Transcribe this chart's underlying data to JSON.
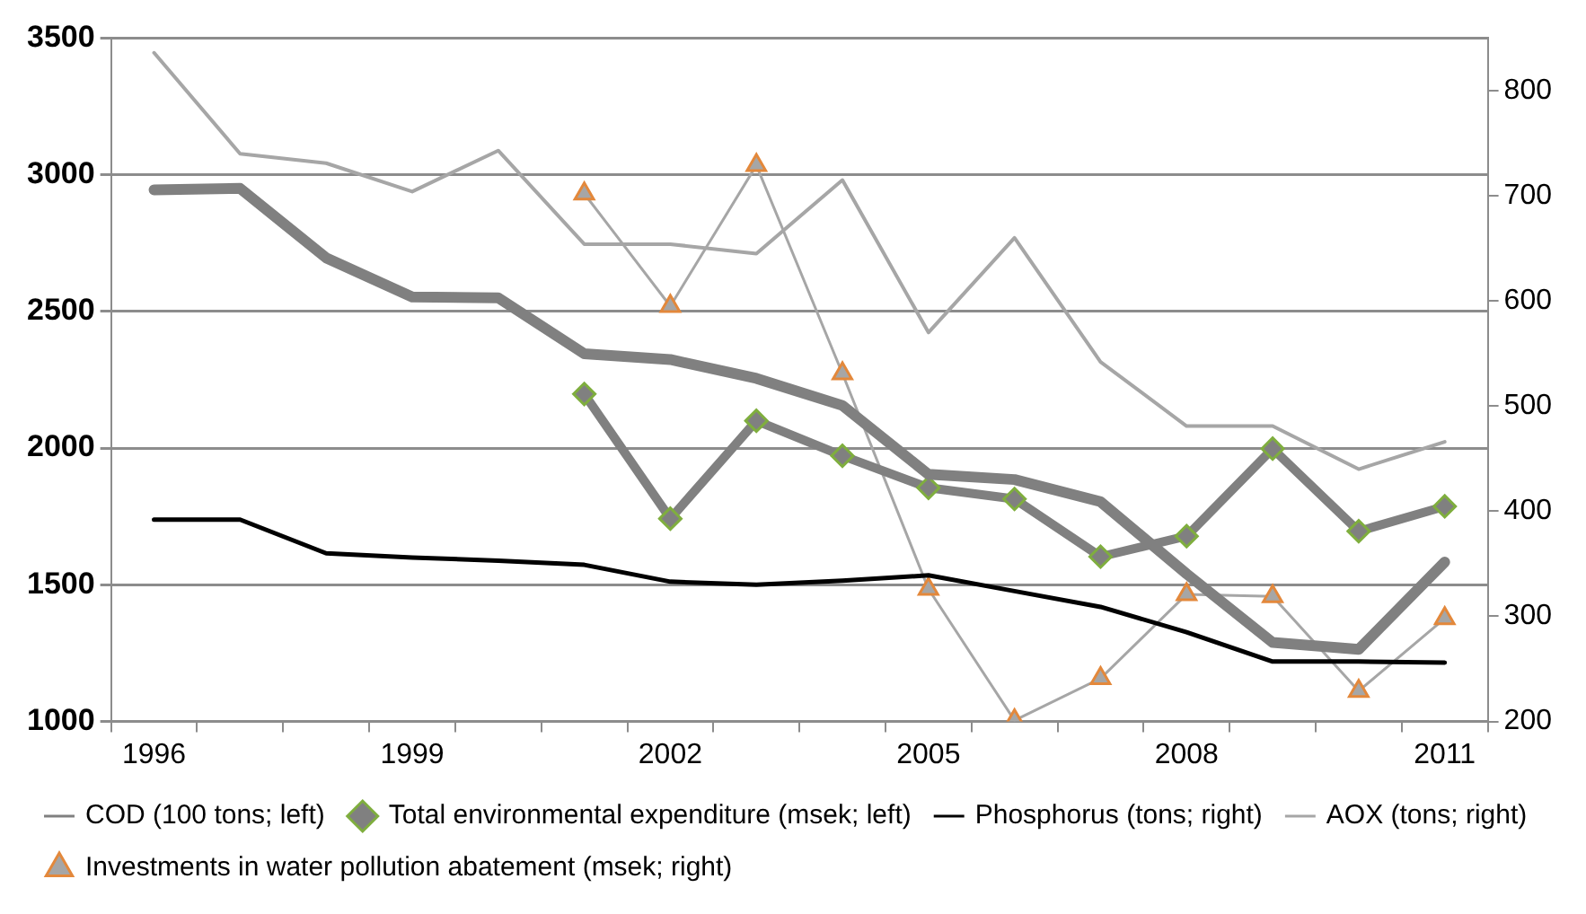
{
  "chart_data": {
    "type": "line",
    "categories": [
      "1996",
      null,
      null,
      "1999",
      null,
      null,
      "2002",
      null,
      null,
      "2005",
      null,
      null,
      "2008",
      null,
      null,
      "2011"
    ],
    "series": [
      {
        "name": "COD (100 tons; left)",
        "color": "#808080",
        "marker": "none",
        "values": [
          2945,
          2950,
          2696,
          2553,
          2550,
          2345,
          2324,
          2255,
          2156,
          1904,
          1885,
          1804,
          1540,
          1289,
          1264,
          1583
        ]
      },
      {
        "name": "Total environmental expenditure (msek; left)",
        "color": "#808080",
        "marker": "diamond",
        "values": [
          null,
          null,
          null,
          null,
          null,
          2198,
          1742,
          2100,
          1972,
          1855,
          1814,
          1603,
          1678,
          1998,
          1696,
          1787
        ]
      },
      {
        "name": "Phosphorus (tons; right)",
        "color": "#000000",
        "marker": "none",
        "axis": "y2",
        "values": [
          392,
          392,
          360,
          356,
          353,
          349,
          333,
          330,
          334,
          339,
          324,
          309,
          285,
          257,
          257,
          256
        ]
      },
      {
        "name": "AOX (tons; right)",
        "color": "#a6a6a6",
        "marker": "none",
        "axis": "y2",
        "values": [
          836,
          740,
          731,
          704,
          743,
          654,
          654,
          645,
          715,
          570,
          660,
          542,
          481,
          481,
          440,
          466
        ]
      },
      {
        "name": "Investments in water pollution abatement (msek; right)",
        "color": "#a6a6a6",
        "marker": "triangle",
        "axis": "y2",
        "values": [
          null,
          null,
          null,
          null,
          null,
          702,
          595,
          729,
          531,
          326,
          201,
          241,
          321,
          319,
          229,
          298
        ]
      }
    ],
    "ylim": [
      1000,
      3500
    ],
    "yticks": [
      1000,
      1500,
      2000,
      2500,
      3000,
      3500
    ],
    "y2lim": [
      200,
      850
    ],
    "y2ticks": [
      200,
      300,
      400,
      500,
      600,
      700,
      800
    ],
    "grid": "y",
    "legend": "bottom"
  }
}
